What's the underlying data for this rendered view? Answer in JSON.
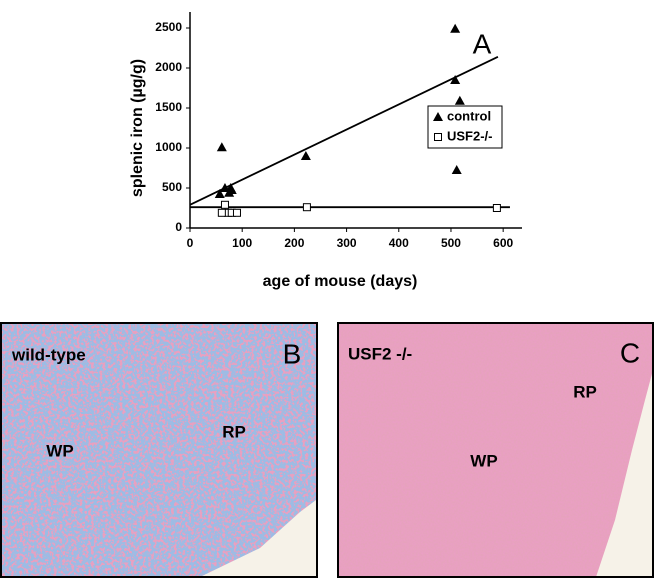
{
  "chart_data": {
    "type": "scatter",
    "panel_letter": "A",
    "xlabel": "age of mouse (days)",
    "ylabel": "splenic iron (µg/g)",
    "xlim": [
      0,
      620
    ],
    "ylim": [
      0,
      2500
    ],
    "xticks": [
      0,
      100,
      200,
      300,
      400,
      500,
      600
    ],
    "yticks": [
      0,
      500,
      1000,
      1500,
      2000,
      2500
    ],
    "legend": "upper right",
    "series": [
      {
        "name": "control",
        "marker": "triangle",
        "color": "#000000",
        "x": [
          61,
          67,
          75,
          78,
          80,
          57,
          222,
          508,
          508,
          517,
          511
        ],
        "values": [
          1010,
          500,
          440,
          500,
          475,
          425,
          900,
          2490,
          1850,
          1590,
          725
        ],
        "fit": {
          "x": [
            0,
            590
          ],
          "y": [
            290,
            2140
          ]
        }
      },
      {
        "name": "USF2-/-",
        "marker": "square",
        "color": "#000000",
        "x": [
          67,
          73,
          80,
          90,
          61,
          224,
          588
        ],
        "values": [
          290,
          190,
          190,
          190,
          190,
          260,
          250
        ],
        "fit": {
          "x": [
            0,
            613
          ],
          "y": [
            260,
            260
          ]
        }
      }
    ]
  },
  "panels": [
    {
      "caption": "wild-type",
      "letter": "B",
      "regions": [
        "WP",
        "RP"
      ]
    },
    {
      "caption": "USF2 -/-",
      "letter": "C",
      "regions": [
        "WP",
        "RP"
      ]
    }
  ]
}
